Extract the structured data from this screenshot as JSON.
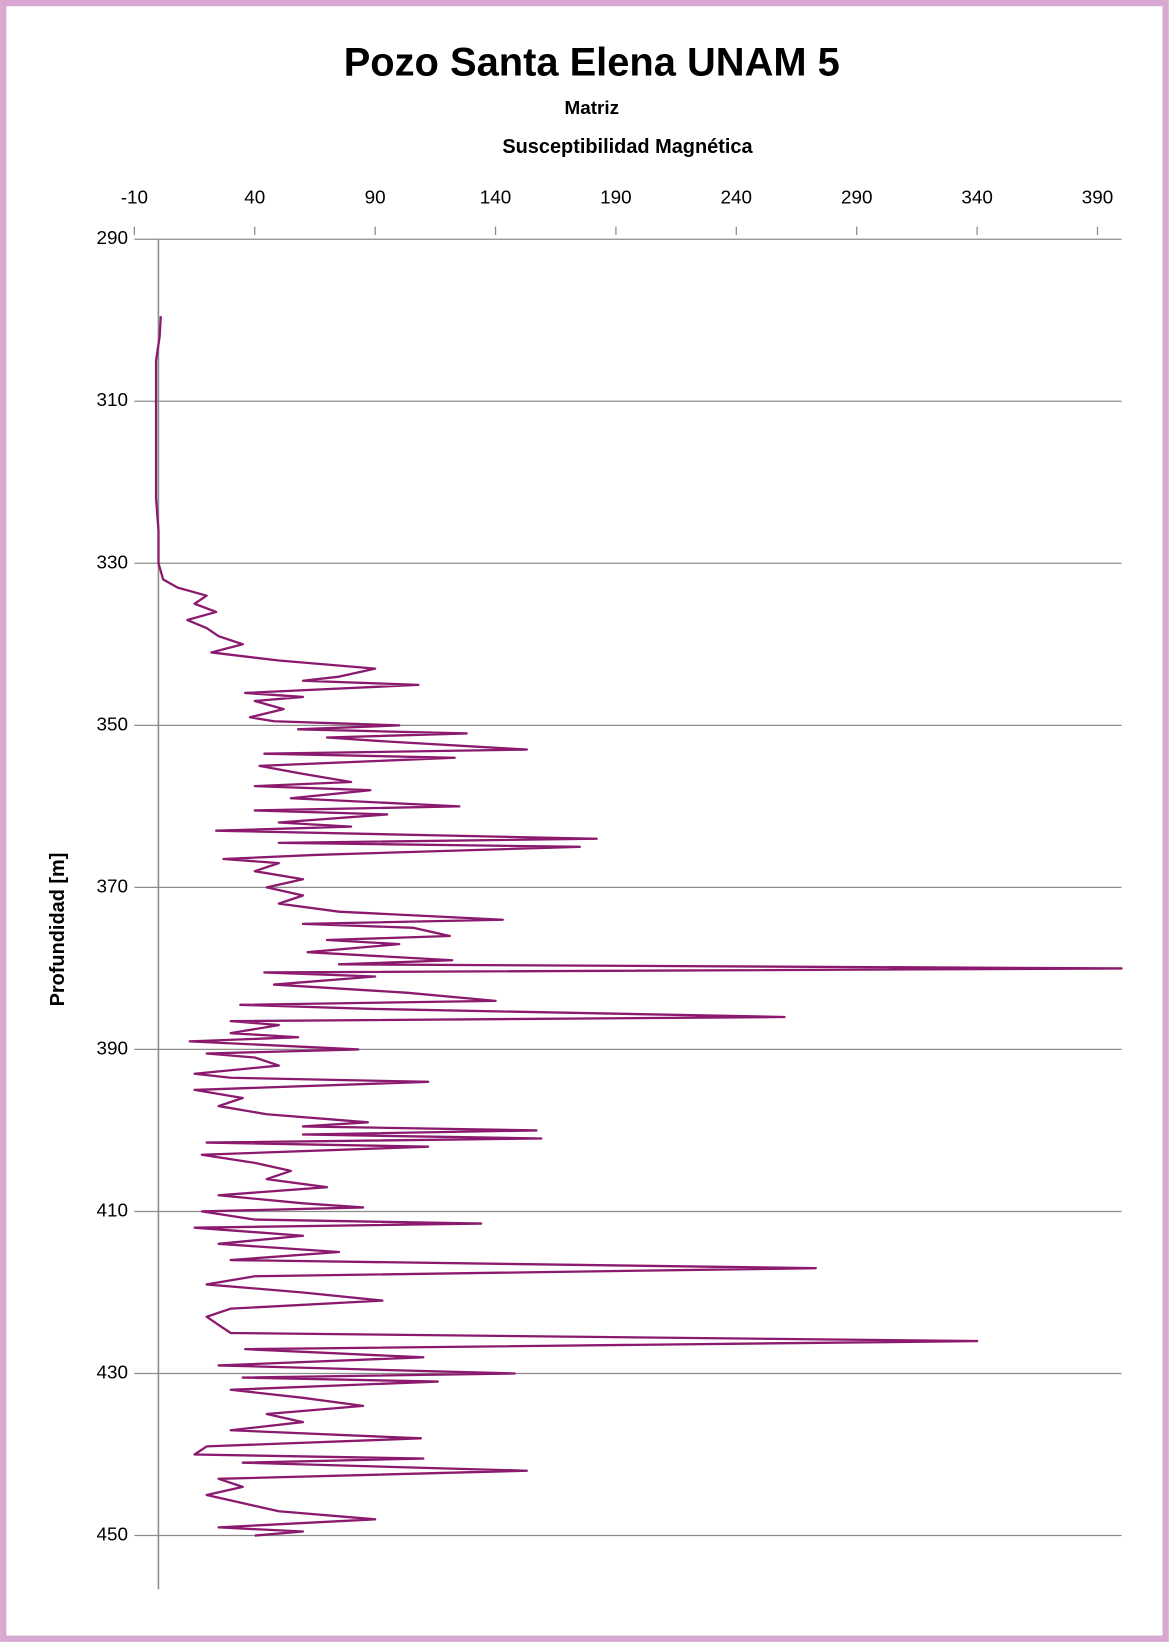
{
  "chart_data": {
    "type": "line",
    "title": "Pozo Santa Elena UNAM 5",
    "subtitle": "Matriz",
    "x_label": "Susceptibilidad Magnética",
    "y_label": "Profundidad [m]",
    "color": "#8b1a6e",
    "xlim": [
      -10,
      400
    ],
    "xticks": [
      -10,
      40,
      90,
      140,
      190,
      240,
      290,
      340,
      390
    ],
    "ylim": [
      290,
      456
    ],
    "yticks": [
      290,
      310,
      330,
      350,
      370,
      390,
      410,
      430,
      450
    ],
    "y_inverted": true,
    "grid": true,
    "y": [
      299.5,
      302,
      305,
      308,
      312,
      318,
      322,
      326,
      330,
      332,
      333,
      334,
      335,
      336,
      337,
      338,
      339,
      340,
      341,
      342,
      343,
      344,
      344.5,
      345,
      346,
      346.5,
      347,
      348,
      349,
      349.5,
      350,
      350.5,
      351,
      351.5,
      352,
      353,
      353.5,
      354,
      355,
      356,
      357,
      357.5,
      358,
      359,
      360,
      360.5,
      361,
      362,
      362.5,
      363,
      364,
      364.5,
      365,
      366,
      366.5,
      367,
      368,
      369,
      370,
      371,
      372,
      373,
      374,
      374.5,
      375,
      376,
      376.5,
      377,
      378,
      379,
      379.5,
      380,
      380.5,
      381,
      382,
      383,
      384,
      384.5,
      385,
      386,
      386.5,
      387,
      388,
      388.5,
      389,
      390,
      390.5,
      391,
      392,
      393,
      393.5,
      394,
      395,
      396,
      397,
      398,
      399,
      399.5,
      400,
      400.5,
      401,
      401.5,
      402,
      403,
      404,
      405,
      406,
      407,
      408,
      409,
      409.5,
      410,
      411,
      411.5,
      412,
      413,
      414,
      415,
      416,
      417,
      418,
      419,
      420,
      421,
      422,
      423,
      424,
      425,
      426,
      427,
      428,
      429,
      430,
      430.5,
      431,
      432,
      433,
      434,
      435,
      436,
      437,
      438,
      439,
      440,
      440.5,
      441,
      442,
      443,
      444,
      445,
      446,
      447,
      448,
      449,
      449.5,
      450
    ],
    "values": [
      1,
      0.5,
      -1,
      -1,
      -1,
      -1,
      -1,
      0,
      0,
      2,
      8,
      20,
      15,
      24,
      12,
      20,
      25,
      35,
      22,
      50,
      90,
      75,
      60,
      108,
      36,
      60,
      40,
      52,
      38,
      48,
      100,
      58,
      128,
      70,
      95,
      153,
      44,
      123,
      42,
      60,
      80,
      40,
      88,
      55,
      125,
      40,
      95,
      50,
      80,
      24,
      182,
      50,
      175,
      65,
      27,
      50,
      40,
      60,
      45,
      60,
      50,
      75,
      143,
      60,
      106,
      121,
      70,
      100,
      62,
      122,
      75,
      400,
      44,
      90,
      48,
      103,
      140,
      34,
      89,
      260,
      30,
      50,
      30,
      58,
      13,
      83,
      20,
      40,
      50,
      15,
      30,
      112,
      15,
      35,
      25,
      45,
      87,
      60,
      157,
      60,
      159,
      20,
      112,
      18,
      40,
      55,
      45,
      70,
      25,
      60,
      85,
      18,
      40,
      134,
      15,
      60,
      25,
      75,
      30,
      273,
      40,
      20,
      60,
      93,
      30,
      20,
      25,
      30,
      340,
      36,
      110,
      25,
      148,
      35,
      116,
      30,
      60,
      85,
      45,
      60,
      30,
      109,
      20,
      15,
      110,
      35,
      153,
      25,
      35,
      20,
      35,
      50,
      90,
      25,
      60,
      40
    ]
  }
}
